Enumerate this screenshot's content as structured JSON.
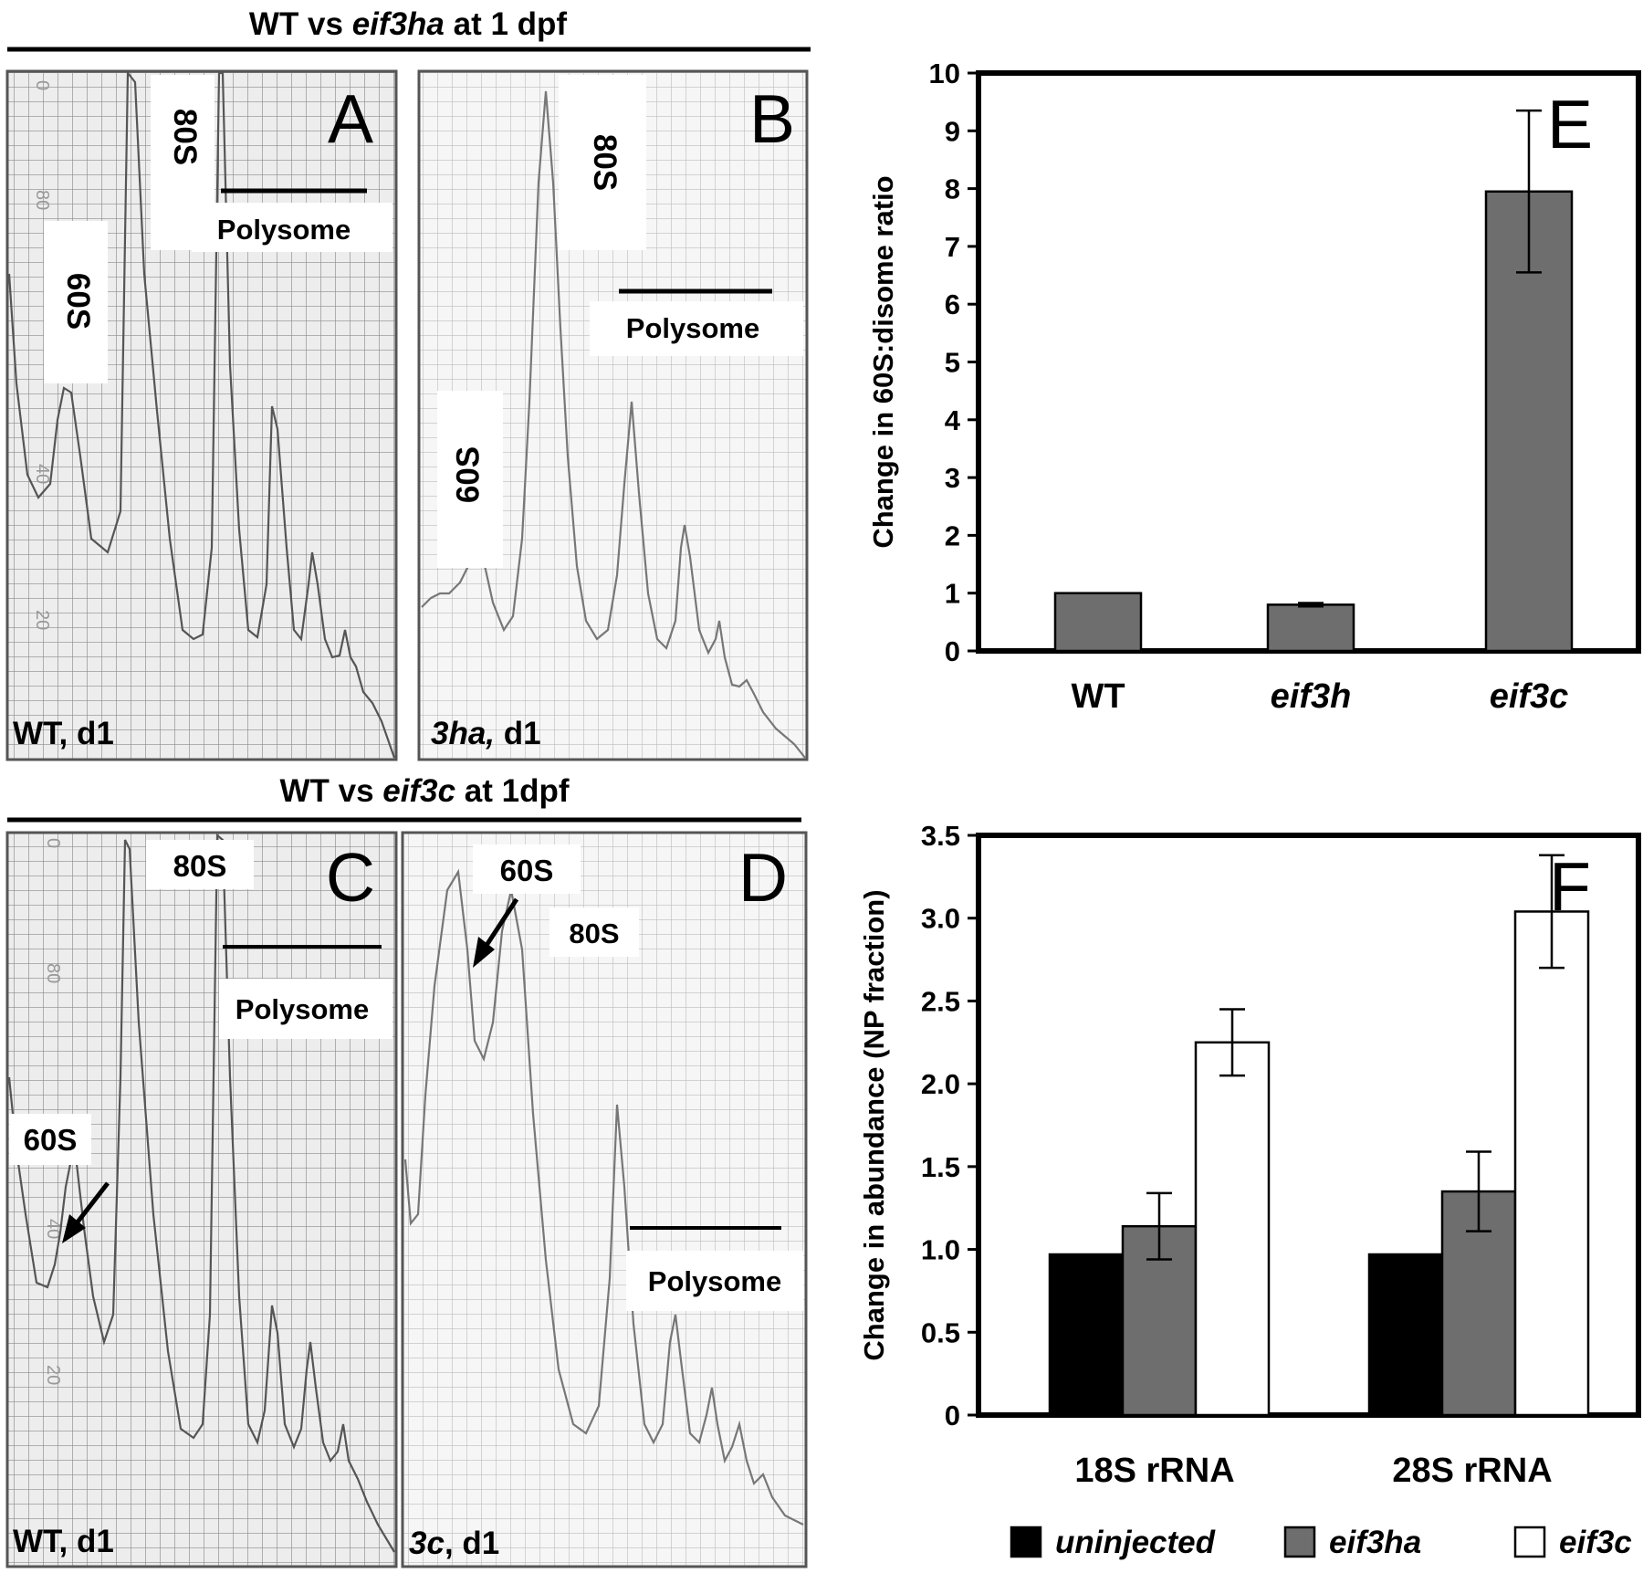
{
  "figure": {
    "top_title": {
      "pre": "WT vs ",
      "gene": "eif3ha",
      "post": " at 1 dpf"
    },
    "mid_title": {
      "pre": "WT vs ",
      "gene": "eif3c",
      "post": " at 1dpf"
    }
  },
  "panels": {
    "A": {
      "letter": "A",
      "label_80s": "80S",
      "label_60s": "60S",
      "polysome": "Polysome",
      "footer_a": "WT, d1",
      "footer_b": "",
      "grid_ticks": [
        "0",
        "80",
        "40",
        "20"
      ]
    },
    "B": {
      "letter": "B",
      "label_80s": "80S",
      "label_60s": "60S",
      "polysome": "Polysome",
      "footer_a": "3ha,",
      "footer_b": " d1"
    },
    "C": {
      "letter": "C",
      "label_80s": "80S",
      "label_60s": "60S",
      "polysome": "Polysome",
      "footer_a": "WT, d1",
      "footer_b": "",
      "grid_ticks": [
        "0",
        "80",
        "40",
        "20"
      ]
    },
    "D": {
      "letter": "D",
      "label_80s": "80S",
      "label_60s": "60S",
      "polysome": "Polysome",
      "footer_a": "3c",
      "footer_b": ", d1"
    }
  },
  "chart_data": [
    {
      "panel": "E",
      "type": "bar",
      "title": "",
      "ylabel": "Change in 60S:disome ratio",
      "categories": [
        "WT",
        "eif3h",
        "eif3c"
      ],
      "italic_categories": [
        false,
        true,
        true
      ],
      "values": [
        1.0,
        0.8,
        7.95
      ],
      "errors": [
        0,
        0.03,
        1.4
      ],
      "ylim": [
        0,
        10
      ],
      "yticks": [
        "0",
        "1",
        "2",
        "3",
        "4",
        "5",
        "6",
        "7",
        "8",
        "9",
        "10"
      ],
      "bar_color": "#6e6e6e"
    },
    {
      "panel": "F",
      "type": "bar",
      "title": "",
      "ylabel": "Change in abundance (NP fraction)",
      "categories": [
        "18S rRNA",
        "28S rRNA"
      ],
      "series": [
        {
          "name": "uninjected",
          "values": [
            0.97,
            0.97
          ],
          "errors": [
            0,
            0
          ],
          "color": "#000000"
        },
        {
          "name": "eif3ha",
          "values": [
            1.14,
            1.35
          ],
          "errors": [
            0.2,
            0.24
          ],
          "color": "#6e6e6e"
        },
        {
          "name": "eif3c",
          "values": [
            2.25,
            3.04
          ],
          "errors": [
            0.2,
            0.34
          ],
          "color": "#ffffff"
        }
      ],
      "ylim": [
        0,
        3.5
      ],
      "yticks": [
        "0",
        "0.5",
        "1.0",
        "1.5",
        "2.0",
        "2.5",
        "3.0",
        "3.5"
      ],
      "legend_position": "bottom"
    }
  ]
}
